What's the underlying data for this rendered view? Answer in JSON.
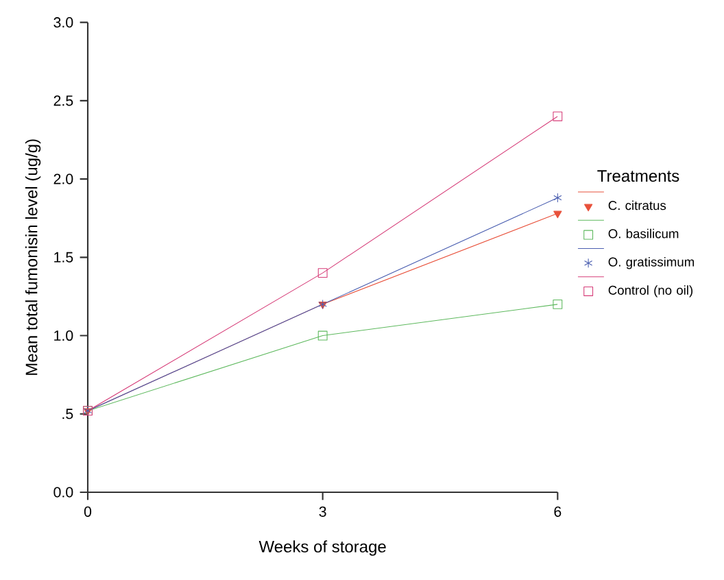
{
  "chart_data": {
    "type": "line",
    "xlabel": "Weeks of storage",
    "ylabel": "Mean total fumonisin level (ug/g)",
    "legend_title": "Treatments",
    "x": [
      0,
      3,
      6
    ],
    "series": [
      {
        "name": "C. citratus",
        "color": "#e8503a",
        "marker": "triangle",
        "values": [
          0.52,
          1.2,
          1.78
        ]
      },
      {
        "name": "O. basilicum",
        "color": "#5cb85c",
        "marker": "square",
        "values": [
          0.52,
          1.0,
          1.2
        ]
      },
      {
        "name": "O. gratissimum",
        "color": "#4a5eb0",
        "marker": "cross",
        "values": [
          0.52,
          1.2,
          1.88
        ]
      },
      {
        "name": "Control (no oil)",
        "color": "#d63c78",
        "marker": "square",
        "values": [
          0.52,
          1.4,
          2.4
        ]
      }
    ],
    "xlim": [
      0,
      6
    ],
    "ylim": [
      0,
      3
    ],
    "xticks": [
      0,
      3,
      6
    ],
    "yticks": [
      {
        "value": 0,
        "label": "0.0"
      },
      {
        "value": 0.5,
        "label": ".5"
      },
      {
        "value": 1,
        "label": "1.0"
      },
      {
        "value": 1.5,
        "label": "1.5"
      },
      {
        "value": 2,
        "label": "2.0"
      },
      {
        "value": 2.5,
        "label": "2.5"
      },
      {
        "value": 3,
        "label": "3.0"
      }
    ],
    "grid": false,
    "legend": "right",
    "line_style": "solid"
  }
}
